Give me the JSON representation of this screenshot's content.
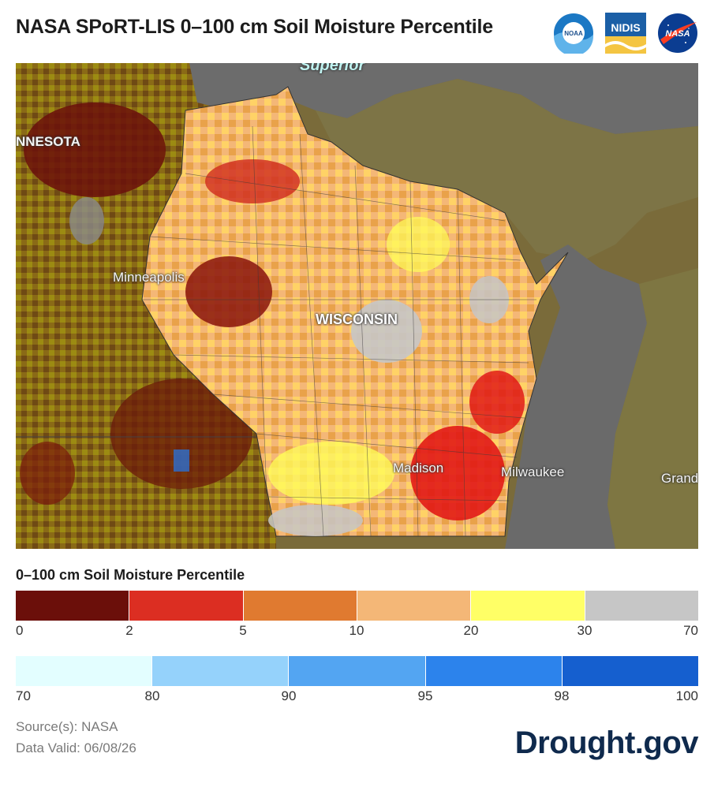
{
  "header": {
    "title": "NASA SPoRT-LIS 0–100 cm Soil Moisture Percentile"
  },
  "logos": [
    {
      "name": "noaa-logo",
      "text": "NOAA"
    },
    {
      "name": "nidis-logo",
      "text": "NIDIS"
    },
    {
      "name": "nasa-logo",
      "text": "NASA"
    }
  ],
  "map": {
    "labels": {
      "superior": "Superior",
      "minnesota": "NNESOTA",
      "minneapolis": "Minneapolis",
      "wisconsin": "WISCONSIN",
      "madison": "Madison",
      "milwaukee": "Milwaukee",
      "grand": "Grand"
    }
  },
  "legend": {
    "title": "0–100 cm Soil Moisture Percentile",
    "dry_classes": [
      {
        "range": "0–2",
        "color": "#6b0f0a"
      },
      {
        "range": "2–5",
        "color": "#dc2e22"
      },
      {
        "range": "5–10",
        "color": "#e07a30"
      },
      {
        "range": "10–20",
        "color": "#f4b777"
      },
      {
        "range": "20–30",
        "color": "#ffff66"
      },
      {
        "range": "30–70",
        "color": "#c6c6c6"
      }
    ],
    "dry_ticks": [
      "0",
      "2",
      "5",
      "10",
      "20",
      "30",
      "70"
    ],
    "wet_classes": [
      {
        "range": "70–80",
        "color": "#e3feff"
      },
      {
        "range": "80–90",
        "color": "#95d2fb"
      },
      {
        "range": "90–95",
        "color": "#53a5f2"
      },
      {
        "range": "95–98",
        "color": "#2c83ec"
      },
      {
        "range": "98–100",
        "color": "#155fcf"
      }
    ],
    "wet_ticks": [
      "70",
      "80",
      "90",
      "95",
      "98",
      "100"
    ]
  },
  "footer": {
    "source": "Source(s): NASA",
    "valid": "Data Valid: 06/08/26",
    "brand": "Drought.gov"
  }
}
